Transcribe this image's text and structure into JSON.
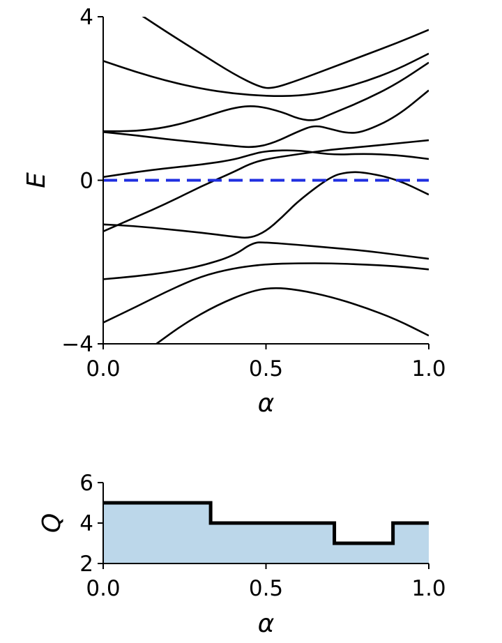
{
  "chart_data": [
    {
      "type": "line",
      "xlabel": "α",
      "ylabel": "E",
      "xlim": [
        0.0,
        1.0
      ],
      "ylim": [
        -4,
        4
      ],
      "xticks": [
        "0.0",
        "0.5",
        "1.0"
      ],
      "yticks": [
        "−4",
        "0",
        "4"
      ],
      "grid": false,
      "reference_line": {
        "y": 0,
        "style": "dashed",
        "color": "#1f2fe0"
      },
      "line_color": "#000000",
      "series": [
        {
          "points": [
            [
              0.12,
              4.02
            ],
            [
              0.2,
              3.6
            ],
            [
              0.3,
              3.1
            ],
            [
              0.4,
              2.6
            ],
            [
              0.48,
              2.28
            ],
            [
              0.52,
              2.24
            ],
            [
              0.6,
              2.45
            ],
            [
              0.7,
              2.75
            ],
            [
              0.8,
              3.05
            ],
            [
              0.9,
              3.35
            ],
            [
              1.0,
              3.68
            ]
          ]
        },
        {
          "points": [
            [
              0.0,
              2.92
            ],
            [
              0.1,
              2.65
            ],
            [
              0.2,
              2.42
            ],
            [
              0.3,
              2.24
            ],
            [
              0.4,
              2.12
            ],
            [
              0.5,
              2.06
            ],
            [
              0.6,
              2.06
            ],
            [
              0.7,
              2.18
            ],
            [
              0.8,
              2.4
            ],
            [
              0.9,
              2.7
            ],
            [
              1.0,
              3.1
            ]
          ]
        },
        {
          "points": [
            [
              0.0,
              1.2
            ],
            [
              0.1,
              1.2
            ],
            [
              0.2,
              1.3
            ],
            [
              0.3,
              1.52
            ],
            [
              0.4,
              1.78
            ],
            [
              0.47,
              1.83
            ],
            [
              0.55,
              1.67
            ],
            [
              0.6,
              1.5
            ],
            [
              0.65,
              1.45
            ],
            [
              0.7,
              1.62
            ],
            [
              0.8,
              1.95
            ],
            [
              0.9,
              2.35
            ],
            [
              1.0,
              2.88
            ]
          ]
        },
        {
          "points": [
            [
              0.0,
              1.18
            ],
            [
              0.1,
              1.1
            ],
            [
              0.2,
              1.0
            ],
            [
              0.3,
              0.92
            ],
            [
              0.4,
              0.84
            ],
            [
              0.46,
              0.8
            ],
            [
              0.52,
              0.9
            ],
            [
              0.6,
              1.2
            ],
            [
              0.65,
              1.35
            ],
            [
              0.7,
              1.25
            ],
            [
              0.75,
              1.15
            ],
            [
              0.8,
              1.18
            ],
            [
              0.9,
              1.55
            ],
            [
              1.0,
              2.2
            ]
          ]
        },
        {
          "points": [
            [
              0.0,
              -1.08
            ],
            [
              0.1,
              -1.12
            ],
            [
              0.2,
              -1.2
            ],
            [
              0.3,
              -1.28
            ],
            [
              0.4,
              -1.38
            ],
            [
              0.45,
              -1.42
            ],
            [
              0.5,
              -1.25
            ],
            [
              0.55,
              -0.9
            ],
            [
              0.6,
              -0.5
            ],
            [
              0.7,
              0.1
            ],
            [
              0.75,
              0.2
            ],
            [
              0.8,
              0.2
            ],
            [
              0.9,
              0.03
            ],
            [
              1.0,
              -0.35
            ]
          ]
        },
        {
          "points": [
            [
              0.0,
              -1.25
            ],
            [
              0.1,
              -0.9
            ],
            [
              0.2,
              -0.55
            ],
            [
              0.3,
              -0.15
            ],
            [
              0.4,
              0.2
            ],
            [
              0.45,
              0.4
            ],
            [
              0.5,
              0.52
            ],
            [
              0.6,
              0.64
            ],
            [
              0.7,
              0.75
            ],
            [
              0.8,
              0.82
            ],
            [
              0.9,
              0.9
            ],
            [
              1.0,
              0.98
            ]
          ]
        },
        {
          "points": [
            [
              0.0,
              0.08
            ],
            [
              0.1,
              0.2
            ],
            [
              0.2,
              0.3
            ],
            [
              0.3,
              0.38
            ],
            [
              0.4,
              0.5
            ],
            [
              0.45,
              0.62
            ],
            [
              0.5,
              0.72
            ],
            [
              0.6,
              0.74
            ],
            [
              0.7,
              0.62
            ],
            [
              0.8,
              0.65
            ],
            [
              0.9,
              0.62
            ],
            [
              1.0,
              0.52
            ]
          ]
        },
        {
          "points": [
            [
              0.0,
              -2.42
            ],
            [
              0.1,
              -2.35
            ],
            [
              0.2,
              -2.25
            ],
            [
              0.3,
              -2.1
            ],
            [
              0.4,
              -1.85
            ],
            [
              0.46,
              -1.52
            ],
            [
              0.5,
              -1.52
            ],
            [
              0.6,
              -1.58
            ],
            [
              0.7,
              -1.65
            ],
            [
              0.8,
              -1.72
            ],
            [
              0.9,
              -1.82
            ],
            [
              1.0,
              -1.92
            ]
          ]
        },
        {
          "points": [
            [
              0.0,
              -3.48
            ],
            [
              0.1,
              -3.1
            ],
            [
              0.2,
              -2.7
            ],
            [
              0.3,
              -2.35
            ],
            [
              0.4,
              -2.15
            ],
            [
              0.5,
              -2.05
            ],
            [
              0.6,
              -2.03
            ],
            [
              0.7,
              -2.03
            ],
            [
              0.8,
              -2.06
            ],
            [
              0.9,
              -2.1
            ],
            [
              1.0,
              -2.18
            ]
          ]
        },
        {
          "points": [
            [
              0.16,
              -4.02
            ],
            [
              0.25,
              -3.5
            ],
            [
              0.35,
              -3.05
            ],
            [
              0.45,
              -2.72
            ],
            [
              0.52,
              -2.62
            ],
            [
              0.6,
              -2.68
            ],
            [
              0.7,
              -2.85
            ],
            [
              0.8,
              -3.1
            ],
            [
              0.9,
              -3.4
            ],
            [
              1.0,
              -3.8
            ]
          ]
        }
      ]
    },
    {
      "type": "area",
      "step": "post",
      "xlabel": "α",
      "ylabel": "Q",
      "xlim": [
        0.0,
        1.0
      ],
      "ylim": [
        2,
        6
      ],
      "xticks": [
        "0.0",
        "0.5",
        "1.0"
      ],
      "yticks": [
        "2",
        "4",
        "6"
      ],
      "grid": false,
      "fill_color": "#bcd7ea",
      "line_color": "#000000",
      "x": [
        0.0,
        0.33,
        0.71,
        0.89,
        1.0
      ],
      "values": [
        5,
        4,
        3,
        4,
        4
      ]
    }
  ]
}
